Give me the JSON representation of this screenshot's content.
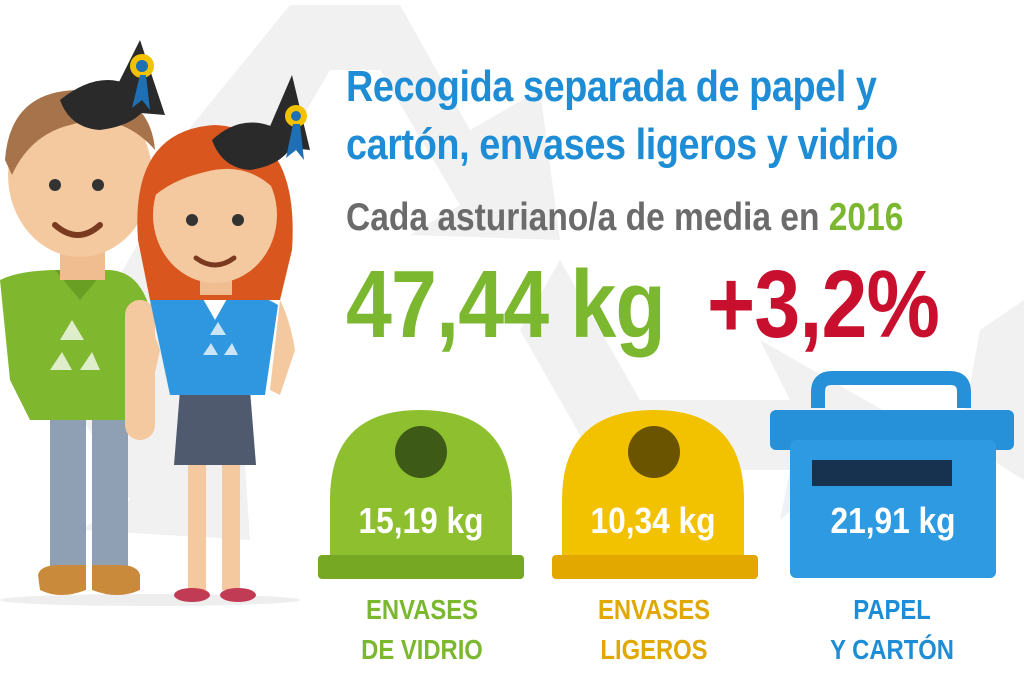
{
  "title": {
    "line1": "Recogida separada de papel y",
    "line2": "cartón, envases ligeros y vidrio"
  },
  "subtitle": {
    "text": "Cada asturiano/a de media en ",
    "year": "2016"
  },
  "highlight": {
    "total": "47,44 kg",
    "change": "+3,2%"
  },
  "bins": [
    {
      "value": "15,19 kg",
      "label_line1": "ENVASES",
      "label_line2": "DE VIDRIO",
      "color": "#8dbf2e",
      "icon": "green-igloo-bin-icon"
    },
    {
      "value": "10,34 kg",
      "label_line1": "ENVASES",
      "label_line2": "LIGEROS",
      "color": "#f2c200",
      "icon": "yellow-igloo-bin-icon"
    },
    {
      "value": "21,91 kg",
      "label_line1": "PAPEL",
      "label_line2": "Y CARTÓN",
      "color": "#2690d8",
      "icon": "blue-paper-bin-icon"
    }
  ],
  "colors": {
    "title_blue": "#1f8dd6",
    "subtitle_gray": "#6b6b6b",
    "accent_green": "#7cb82f",
    "accent_red": "#c8102e",
    "label_yellow": "#e0a800",
    "label_blue": "#1f8dd6"
  },
  "illustration": {
    "characters": [
      "boy-recycling-shirt-icon",
      "girl-recycling-shirt-icon"
    ],
    "background_icon": "recycle-symbol-watermark-icon"
  }
}
